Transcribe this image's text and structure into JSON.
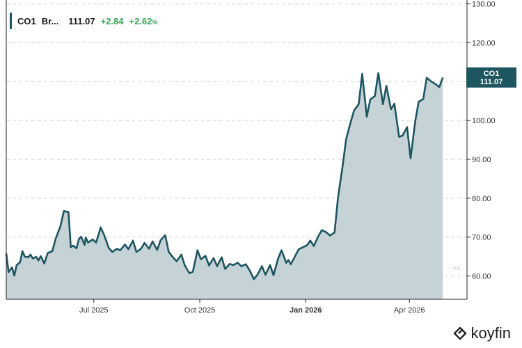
{
  "header": {
    "ticker": "CO1",
    "name": "Br...",
    "price": "111.07",
    "change": "+2.84",
    "change_pct": "+2.62",
    "pct_sign": "%"
  },
  "price_tag": {
    "label": "CO1",
    "value": "111.07"
  },
  "baseline_label": "0.0",
  "brand": {
    "name": "koyfin"
  },
  "colors": {
    "line": "#1d5560",
    "fill": "#c5d3d7",
    "positive": "#3aa655",
    "tag": "#1d5560"
  },
  "chart_data": {
    "type": "area",
    "title": "",
    "xlabel": "",
    "ylabel": "",
    "ylim": [
      54,
      131
    ],
    "grid": true,
    "y_ticks": [
      "60.00",
      "70.00",
      "80.00",
      "90.00",
      "100.00",
      "110.00",
      "120.00",
      "130.00"
    ],
    "x_ticks": [
      {
        "label": "Jul 2025",
        "date": "2025-07-01",
        "bold": false
      },
      {
        "label": "Oct 2025",
        "date": "2025-10-01",
        "bold": false
      },
      {
        "label": "Jan 2026",
        "date": "2026-01-01",
        "bold": true
      },
      {
        "label": "Apr 2026",
        "date": "2026-04-01",
        "bold": false
      }
    ],
    "series": [
      {
        "x": [
          "2025-04-16",
          "2025-04-18",
          "2025-04-21",
          "2025-04-23",
          "2025-04-25",
          "2025-04-28",
          "2025-04-30",
          "2025-05-02",
          "2025-05-05",
          "2025-05-07",
          "2025-05-09",
          "2025-05-12",
          "2025-05-14",
          "2025-05-16",
          "2025-05-19",
          "2025-05-22",
          "2025-05-26",
          "2025-05-29",
          "2025-06-02",
          "2025-06-05",
          "2025-06-09",
          "2025-06-11",
          "2025-06-13",
          "2025-06-16",
          "2025-06-18",
          "2025-06-20",
          "2025-06-23",
          "2025-06-24",
          "2025-06-26",
          "2025-06-30",
          "2025-07-03",
          "2025-07-07",
          "2025-07-10",
          "2025-07-14",
          "2025-07-17",
          "2025-07-21",
          "2025-07-24",
          "2025-07-28",
          "2025-07-31",
          "2025-08-04",
          "2025-08-07",
          "2025-08-11",
          "2025-08-14",
          "2025-08-18",
          "2025-08-21",
          "2025-08-25",
          "2025-08-28",
          "2025-09-01",
          "2025-09-04",
          "2025-09-08",
          "2025-09-11",
          "2025-09-15",
          "2025-09-18",
          "2025-09-22",
          "2025-09-25",
          "2025-09-29",
          "2025-10-02",
          "2025-10-06",
          "2025-10-09",
          "2025-10-13",
          "2025-10-16",
          "2025-10-20",
          "2025-10-23",
          "2025-10-27",
          "2025-10-30",
          "2025-11-03",
          "2025-11-06",
          "2025-11-10",
          "2025-11-13",
          "2025-11-17",
          "2025-11-20",
          "2025-11-24",
          "2025-11-27",
          "2025-12-01",
          "2025-12-04",
          "2025-12-08",
          "2025-12-11",
          "2025-12-15",
          "2025-12-17",
          "2025-12-19",
          "2025-12-22",
          "2025-12-26",
          "2025-12-29",
          "2026-01-02",
          "2026-01-05",
          "2026-01-08",
          "2026-01-12",
          "2026-01-15",
          "2026-01-19",
          "2026-01-22",
          "2026-01-26",
          "2026-01-29",
          "2026-02-02",
          "2026-02-05",
          "2026-02-09",
          "2026-02-12",
          "2026-02-16",
          "2026-02-19",
          "2026-02-23",
          "2026-02-26",
          "2026-03-02",
          "2026-03-05",
          "2026-03-09",
          "2026-03-12",
          "2026-03-16",
          "2026-03-19",
          "2026-03-23",
          "2026-03-26",
          "2026-03-30",
          "2026-04-02",
          "2026-04-06",
          "2026-04-09",
          "2026-04-13",
          "2026-04-16",
          "2026-04-20",
          "2026-04-23",
          "2026-04-27",
          "2026-04-30"
        ],
        "values": [
          65.8,
          61.0,
          62.2,
          60.1,
          62.8,
          63.5,
          66.4,
          65.0,
          64.8,
          65.5,
          64.5,
          64.9,
          64.0,
          65.1,
          63.2,
          65.9,
          66.4,
          69.7,
          72.8,
          76.7,
          76.4,
          67.4,
          67.8,
          67.1,
          69.5,
          70.1,
          68.0,
          69.9,
          68.6,
          69.4,
          68.6,
          72.5,
          70.5,
          67.2,
          66.2,
          67.0,
          66.6,
          68.1,
          66.9,
          69.1,
          66.2,
          67.0,
          68.5,
          67.0,
          68.9,
          66.7,
          69.2,
          70.5,
          66.2,
          64.7,
          63.8,
          65.5,
          62.7,
          60.7,
          61.1,
          66.6,
          64.3,
          65.2,
          62.7,
          64.6,
          62.5,
          64.8,
          61.8,
          63.1,
          62.8,
          63.4,
          62.5,
          63.0,
          61.6,
          59.2,
          60.3,
          62.5,
          60.3,
          62.8,
          60.2,
          64.5,
          66.6,
          63.4,
          64.1,
          63.0,
          64.7,
          66.9,
          67.3,
          67.9,
          69.1,
          67.7,
          70.3,
          71.8,
          71.2,
          70.4,
          71.2,
          80.1,
          88.3,
          95.1,
          99.6,
          102.6,
          104.2,
          112.0,
          101.0,
          105.4,
          106.3,
          112.2,
          104.2,
          108.9,
          102.9,
          104.3,
          95.8,
          96.1,
          98.3,
          90.3,
          99.7,
          104.8,
          105.5,
          111.0,
          110.0,
          109.5,
          108.6,
          111.07
        ]
      }
    ]
  }
}
